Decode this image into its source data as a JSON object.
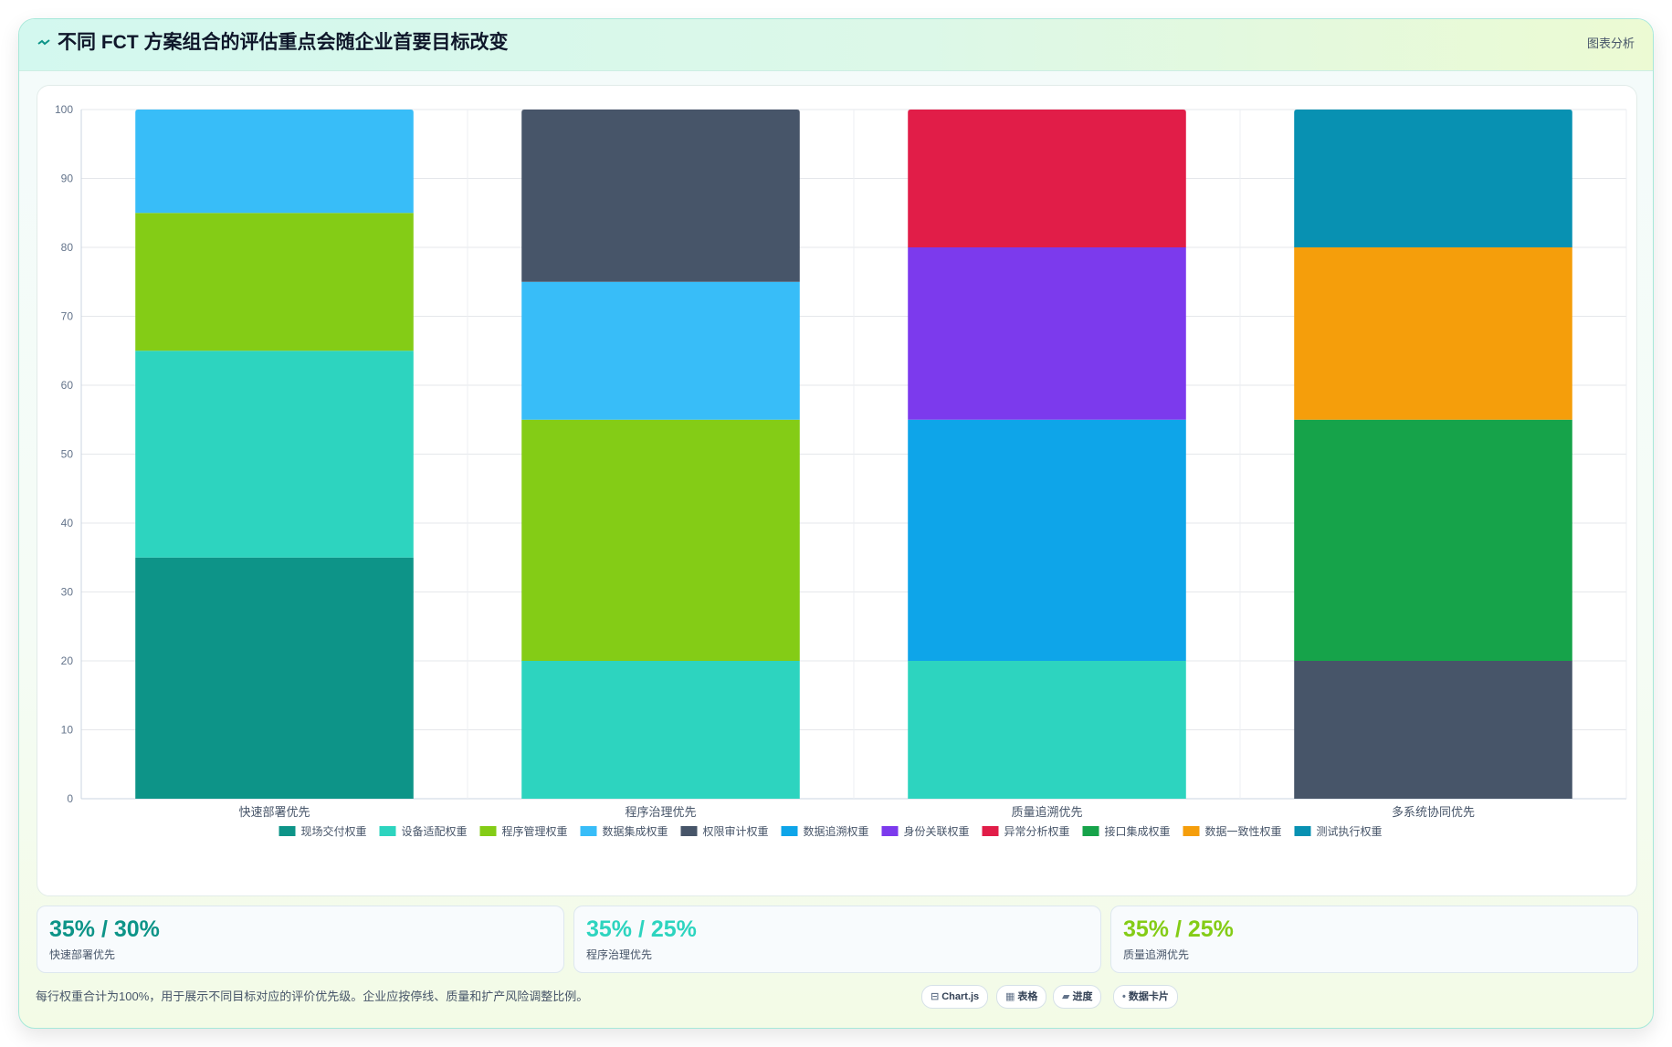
{
  "header": {
    "title_icon": "trend-icon",
    "title": "不同 FCT 方案组合的评估重点会随企业首要目标改变",
    "link_label": "图表分析"
  },
  "chart_data": {
    "type": "bar",
    "stacked": true,
    "categories": [
      "快速部署优先",
      "程序治理优先",
      "质量追溯优先",
      "多系统协同优先"
    ],
    "ylim": [
      0,
      100
    ],
    "yticks": [
      0,
      10,
      20,
      30,
      40,
      50,
      60,
      70,
      80,
      90,
      100
    ],
    "grid": true,
    "legend_position": "bottom",
    "series": [
      {
        "name": "现场交付权重",
        "color": "#0d9488",
        "values": [
          35,
          0,
          0,
          0
        ]
      },
      {
        "name": "设备适配权重",
        "color": "#2dd4bf",
        "values": [
          30,
          20,
          20,
          0
        ]
      },
      {
        "name": "程序管理权重",
        "color": "#84cc16",
        "values": [
          20,
          35,
          0,
          0
        ]
      },
      {
        "name": "数据集成权重",
        "color": "#38bdf8",
        "values": [
          15,
          20,
          0,
          0
        ]
      },
      {
        "name": "权限审计权重",
        "color": "#475569",
        "values": [
          0,
          25,
          0,
          20
        ]
      },
      {
        "name": "数据追溯权重",
        "color": "#0ea5e9",
        "values": [
          0,
          0,
          35,
          0
        ]
      },
      {
        "name": "身份关联权重",
        "color": "#7c3aed",
        "values": [
          0,
          0,
          25,
          0
        ]
      },
      {
        "name": "异常分析权重",
        "color": "#e11d48",
        "values": [
          0,
          0,
          20,
          0
        ]
      },
      {
        "name": "接口集成权重",
        "color": "#16a34a",
        "values": [
          0,
          0,
          0,
          35
        ]
      },
      {
        "name": "数据一致性权重",
        "color": "#f59e0b",
        "values": [
          0,
          0,
          0,
          25
        ]
      },
      {
        "name": "测试执行权重",
        "color": "#0891b2",
        "values": [
          0,
          0,
          0,
          20
        ]
      }
    ]
  },
  "kpis": [
    {
      "value": "35% / 30%",
      "label": "快速部署优先",
      "color": "#0d9488"
    },
    {
      "value": "35% / 25%",
      "label": "程序治理优先",
      "color": "#2dd4bf"
    },
    {
      "value": "35% / 25%",
      "label": "质量追溯优先",
      "color": "#84cc16"
    }
  ],
  "footnote": "每行权重合计为100%，用于展示不同目标对应的评价优先级。企业应按停线、质量和扩产风险调整比例。",
  "chips": [
    {
      "glyph": "⊟",
      "label": "Chart.js",
      "icon": "chart-icon"
    },
    {
      "glyph": "▦",
      "label": "表格",
      "icon": "table-icon"
    },
    {
      "glyph": "▰",
      "label": "进度",
      "icon": "progress-icon"
    },
    {
      "glyph": "•",
      "label": "数据卡片",
      "icon": "card-icon"
    }
  ]
}
